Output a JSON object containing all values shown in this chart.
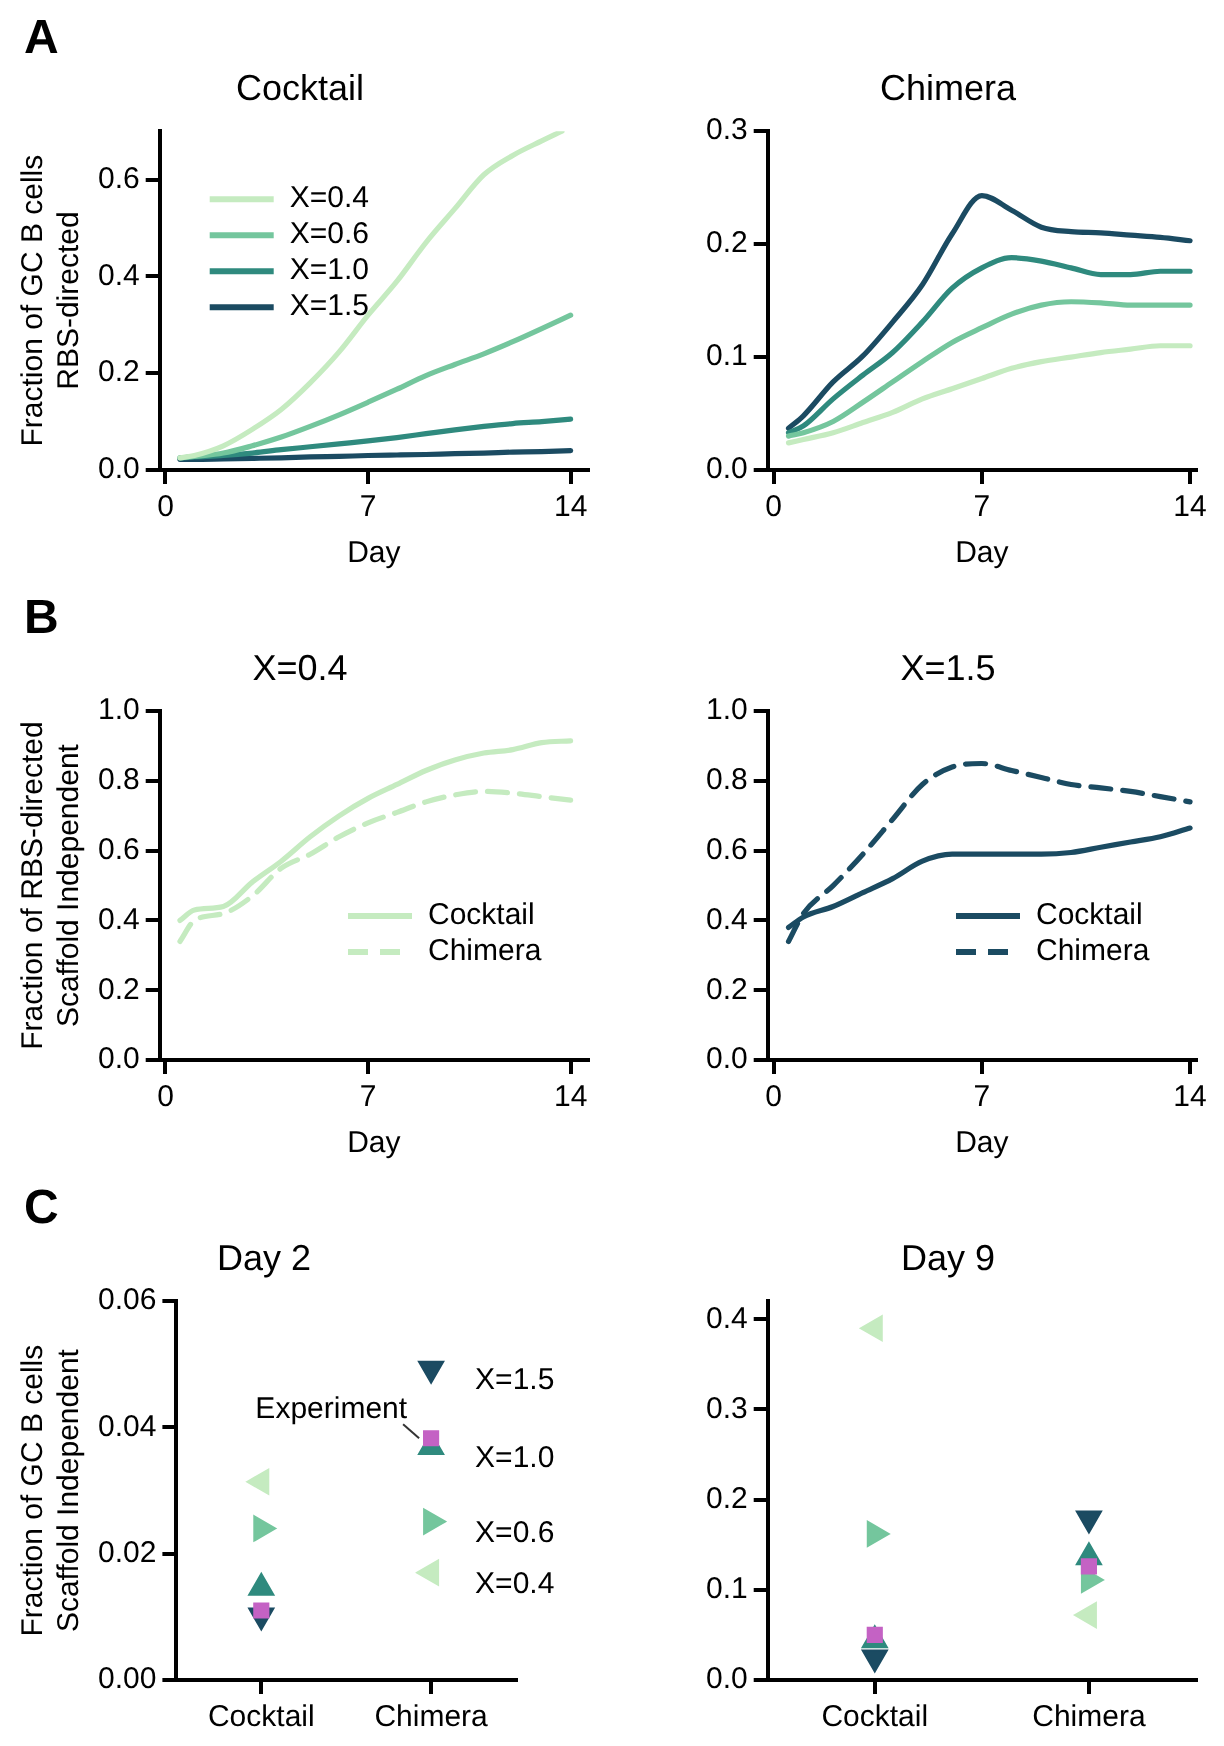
{
  "chart_data": [
    {
      "type": "line",
      "annotations": [
        "A"
      ],
      "title": "Cocktail",
      "xlabel": "Day",
      "ylabel": "Fraction of GC B cells\nRBS-directed",
      "xlim": [
        -0.2,
        14.6
      ],
      "xticks": [
        0,
        7,
        14
      ],
      "ylim": [
        0,
        0.7
      ],
      "yticks": [
        {
          "value": 0,
          "label": "0.0"
        },
        0.2,
        0.4,
        0.6
      ],
      "grid": false,
      "legend": "top left",
      "x": [
        0.5,
        1,
        2,
        3,
        4,
        5,
        6,
        7,
        8,
        9,
        10,
        11,
        12,
        13,
        14
      ],
      "series": [
        {
          "name": "X=0.4",
          "color": "#c5ebc0",
          "x": [
            0.5,
            1,
            2,
            3,
            4,
            5,
            6,
            7,
            8,
            9,
            10,
            11,
            12,
            13,
            13.7
          ],
          "values": [
            0.025,
            0.03,
            0.05,
            0.084,
            0.125,
            0.18,
            0.244,
            0.32,
            0.39,
            0.47,
            0.54,
            0.61,
            0.65,
            0.68,
            0.7
          ]
        },
        {
          "name": "X=0.6",
          "color": "#74c69d",
          "values": [
            0.025,
            0.028,
            0.035,
            0.05,
            0.068,
            0.09,
            0.114,
            0.14,
            0.167,
            0.195,
            0.218,
            0.24,
            0.265,
            0.292,
            0.32
          ]
        },
        {
          "name": "X=1.0",
          "color": "#2f8a7e",
          "values": [
            0.025,
            0.027,
            0.03,
            0.035,
            0.042,
            0.048,
            0.054,
            0.06,
            0.067,
            0.075,
            0.083,
            0.09,
            0.096,
            0.1,
            0.105
          ]
        },
        {
          "name": "X=1.5",
          "color": "#1b4b62",
          "values": [
            0.022,
            0.022,
            0.023,
            0.024,
            0.025,
            0.027,
            0.028,
            0.03,
            0.031,
            0.032,
            0.034,
            0.035,
            0.037,
            0.038,
            0.04
          ]
        }
      ]
    },
    {
      "type": "line",
      "title": "Chimera",
      "xlabel": "Day",
      "xlim": [
        -0.2,
        14.2
      ],
      "xticks": [
        0,
        7,
        14
      ],
      "ylim": [
        0,
        0.3
      ],
      "yticks": [
        {
          "value": 0,
          "label": "0.0"
        },
        0.1,
        0.2,
        0.3
      ],
      "grid": false,
      "x": [
        0.5,
        1,
        2,
        3,
        4,
        5,
        6,
        7,
        8,
        9,
        10,
        11,
        12,
        13,
        14
      ],
      "series": [
        {
          "color": "#c5ebc0",
          "values": [
            0.024,
            0.027,
            0.033,
            0.042,
            0.051,
            0.063,
            0.072,
            0.081,
            0.09,
            0.096,
            0.1,
            0.104,
            0.107,
            0.11,
            0.11
          ]
        },
        {
          "color": "#74c69d",
          "values": [
            0.03,
            0.033,
            0.043,
            0.06,
            0.078,
            0.096,
            0.113,
            0.126,
            0.138,
            0.146,
            0.149,
            0.148,
            0.146,
            0.146,
            0.146
          ]
        },
        {
          "color": "#2f8a7e",
          "values": [
            0.033,
            0.039,
            0.063,
            0.084,
            0.104,
            0.131,
            0.161,
            0.179,
            0.188,
            0.185,
            0.179,
            0.173,
            0.173,
            0.176,
            0.176
          ]
        },
        {
          "color": "#1b4b62",
          "values": [
            0.037,
            0.048,
            0.078,
            0.101,
            0.131,
            0.164,
            0.209,
            0.243,
            0.23,
            0.215,
            0.211,
            0.21,
            0.208,
            0.206,
            0.203
          ]
        }
      ]
    },
    {
      "type": "line",
      "annotations": [
        "B"
      ],
      "title": "X=0.4",
      "xlabel": "Day",
      "ylabel": "Fraction of RBS-directed\nScaffold Independent",
      "xlim": [
        -0.2,
        14.6
      ],
      "xticks": [
        0,
        7,
        14
      ],
      "ylim": [
        0,
        1
      ],
      "yticks": [
        {
          "value": 0,
          "label": "0.0"
        },
        0.2,
        0.4,
        0.6,
        0.8,
        {
          "value": 1,
          "label": "1.0"
        }
      ],
      "grid": false,
      "legend": "bottom right",
      "x": [
        0.5,
        1,
        2,
        3,
        4,
        5,
        6,
        7,
        8,
        9,
        10,
        11,
        12,
        13,
        14
      ],
      "series": [
        {
          "name": "Cocktail",
          "color": "#c5ebc0",
          "line_style": "solid",
          "values": [
            0.4,
            0.43,
            0.44,
            0.51,
            0.57,
            0.64,
            0.7,
            0.75,
            0.79,
            0.83,
            0.86,
            0.88,
            0.89,
            0.91,
            0.915
          ]
        },
        {
          "name": "Chimera",
          "color": "#c5ebc0",
          "line_style": "dashed",
          "values": [
            0.34,
            0.4,
            0.42,
            0.47,
            0.55,
            0.59,
            0.64,
            0.68,
            0.71,
            0.74,
            0.76,
            0.77,
            0.765,
            0.755,
            0.745
          ]
        }
      ]
    },
    {
      "type": "line",
      "title": "X=1.5",
      "xlabel": "Day",
      "xlim": [
        -0.2,
        14.2
      ],
      "xticks": [
        0,
        7,
        14
      ],
      "ylim": [
        0,
        1
      ],
      "yticks": [
        {
          "value": 0,
          "label": "0.0"
        },
        0.2,
        0.4,
        0.6,
        0.8,
        {
          "value": 1,
          "label": "1.0"
        }
      ],
      "grid": false,
      "legend": "bottom right",
      "x": [
        0.5,
        1,
        2,
        3,
        4,
        5,
        6,
        7,
        8,
        9,
        10,
        11,
        12,
        13,
        14
      ],
      "series": [
        {
          "name": "Cocktail",
          "color": "#1b4b62",
          "line_style": "solid",
          "values": [
            0.38,
            0.41,
            0.44,
            0.48,
            0.52,
            0.57,
            0.59,
            0.59,
            0.59,
            0.59,
            0.595,
            0.61,
            0.625,
            0.64,
            0.665
          ]
        },
        {
          "name": "Chimera",
          "color": "#1b4b62",
          "line_style": "dashed",
          "values": [
            0.34,
            0.42,
            0.5,
            0.59,
            0.69,
            0.79,
            0.84,
            0.85,
            0.83,
            0.81,
            0.79,
            0.78,
            0.77,
            0.755,
            0.74
          ]
        }
      ]
    },
    {
      "type": "scatter",
      "annotations": [
        "C"
      ],
      "title": "Day 2",
      "ylabel": "Fraction of GC B cells\nScaffold Independent",
      "categories": [
        "Cocktail",
        "Chimera"
      ],
      "ylim": [
        0,
        0.06
      ],
      "yticks": [
        {
          "value": 0,
          "label": "0.00"
        },
        {
          "value": 0.02,
          "label": "0.02"
        },
        {
          "value": 0.04,
          "label": "0.04"
        },
        {
          "value": 0.06,
          "label": "0.06"
        }
      ],
      "grid": false,
      "series": [
        {
          "name": "Experiment",
          "color": "#c462c4",
          "marker": "square",
          "values": [
            0.011,
            0.0383
          ]
        },
        {
          "name": "X=1.5",
          "color": "#1b4b62",
          "marker": "triangle-down",
          "values": [
            0.0102,
            0.0493
          ]
        },
        {
          "name": "X=1.0",
          "color": "#2f8a7e",
          "marker": "triangle",
          "values": [
            0.0146,
            0.0369
          ]
        },
        {
          "name": "X=0.6",
          "color": "#74c69d",
          "marker": "triangle-right",
          "values": [
            0.024,
            0.0251
          ]
        },
        {
          "name": "X=0.4",
          "color": "#c5ebc0",
          "marker": "triangle-left",
          "values": [
            0.0314,
            0.017
          ]
        }
      ]
    },
    {
      "type": "scatter",
      "title": "Day 9",
      "categories": [
        "Cocktail",
        "Chimera"
      ],
      "ylim": [
        0,
        0.42
      ],
      "yticks": [
        {
          "value": 0,
          "label": "0.0"
        },
        0.1,
        0.2,
        0.3,
        0.4
      ],
      "grid": false,
      "series": [
        {
          "color": "#c462c4",
          "marker": "square",
          "values": [
            0.05,
            0.126
          ]
        },
        {
          "color": "#1b4b62",
          "marker": "triangle-down",
          "values": [
            0.025,
            0.179
          ]
        },
        {
          "color": "#2f8a7e",
          "marker": "triangle",
          "values": [
            0.044,
            0.136
          ]
        },
        {
          "color": "#74c69d",
          "marker": "triangle-right",
          "values": [
            0.162,
            0.111
          ]
        },
        {
          "color": "#c5ebc0",
          "marker": "triangle-left",
          "values": [
            0.39,
            0.072
          ]
        }
      ]
    }
  ]
}
